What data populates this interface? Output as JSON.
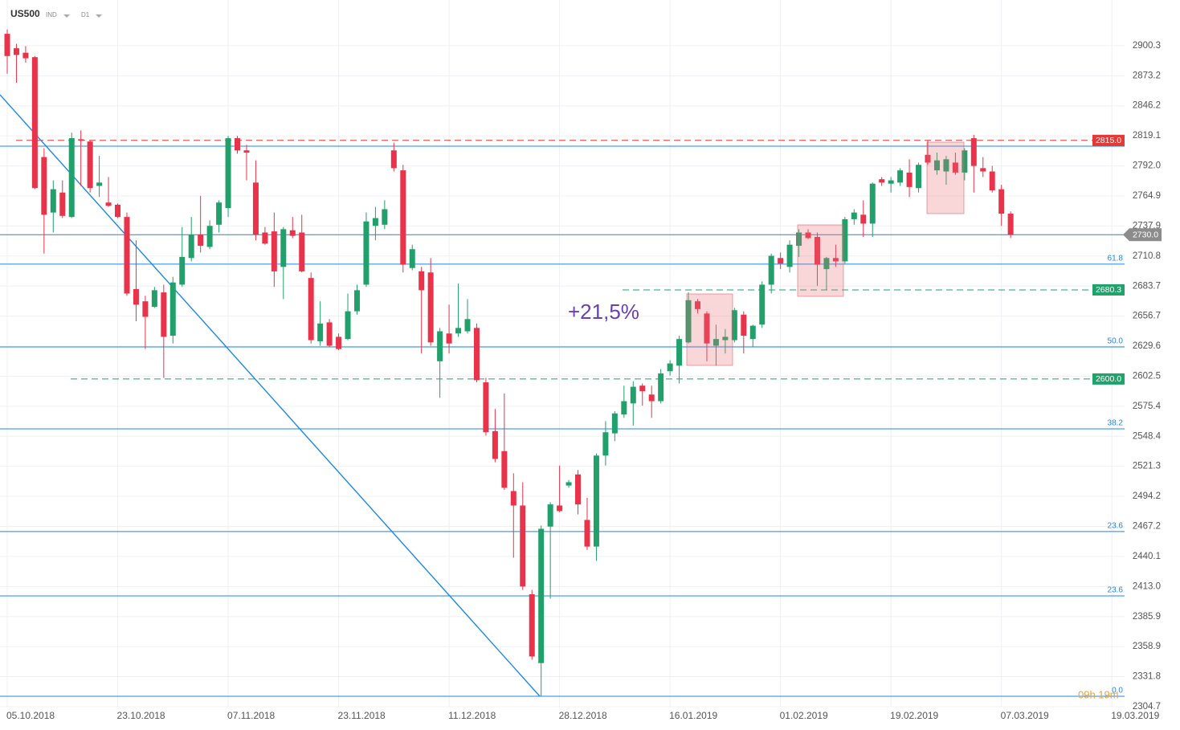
{
  "chart_data": {
    "type": "candlestick",
    "symbol": "US500",
    "instrument_type": "IND",
    "timeframe": "D1",
    "annotation": "+21,5%",
    "timer": "09h 19m",
    "up_color": "#22a06b",
    "down_color": "#e8334a",
    "categories": [
      "05.10.2018",
      null,
      null,
      null,
      null,
      null,
      null,
      null,
      null,
      null,
      null,
      null,
      "23.10.2018",
      null,
      null,
      null,
      null,
      null,
      null,
      null,
      null,
      null,
      null,
      null,
      "07.11.2018",
      null,
      null,
      null,
      null,
      null,
      null,
      null,
      null,
      null,
      null,
      null,
      "23.11.2018",
      null,
      null,
      null,
      null,
      null,
      null,
      null,
      null,
      null,
      null,
      null,
      "11.12.2018",
      null,
      null,
      null,
      null,
      null,
      null,
      null,
      null,
      null,
      null,
      null,
      "28.12.2018",
      null,
      null,
      null,
      null,
      null,
      null,
      null,
      null,
      null,
      null,
      null,
      "16.01.2019",
      null,
      null,
      null,
      null,
      null,
      null,
      null,
      null,
      null,
      null,
      null,
      "01.02.2019",
      null,
      null,
      null,
      null,
      null,
      null,
      null,
      null,
      null,
      null,
      null,
      "19.02.2019",
      null,
      null,
      null,
      null,
      null,
      null,
      null,
      null,
      null,
      null,
      null,
      "07.03.2019",
      null,
      null,
      null,
      null,
      null,
      null,
      null,
      null,
      null,
      null,
      null,
      "19.03.2019"
    ],
    "open": [
      2911,
      2898,
      2894,
      2890,
      2800,
      2750,
      2768,
      2746,
      2816,
      2814,
      2774,
      2759,
      2757,
      2746,
      2681,
      2670,
      2665,
      2678,
      2639,
      2685,
      2709,
      2730,
      2719,
      2739,
      2754,
      2817,
      2806,
      2777,
      2732,
      2733,
      2701,
      2734,
      2732,
      2691,
      2634,
      2651,
      2638,
      2636,
      2661,
      2685,
      2738,
      2739,
      2806,
      2788,
      2700,
      2697,
      2696,
      2616,
      2641,
      2641,
      2643,
      2646,
      2597,
      2553,
      2535,
      2499,
      2486,
      2406,
      2344,
      2467,
      2486,
      2504,
      2514,
      2473,
      2449,
      2531,
      2551,
      2568,
      2578,
      2594,
      2586,
      2580,
      2607,
      2612,
      2633,
      2670,
      2659,
      2630,
      2635,
      2635,
      2658,
      2636,
      2649,
      2685,
      2709,
      2701,
      2720,
      2732,
      2728,
      2699,
      2709,
      2706,
      2744,
      2748,
      2740,
      2780,
      2776,
      2777,
      2786,
      2772,
      2802,
      2788,
      2787,
      2795,
      2786,
      2817,
      2790,
      2787,
      2771,
      2749,
      null,
      null,
      null,
      null,
      null,
      null,
      null,
      null,
      null,
      null,
      null
    ],
    "high": [
      2915,
      2902,
      2900,
      2891,
      2808,
      2779,
      2779,
      2822,
      2824,
      2815,
      2801,
      2782,
      2758,
      2750,
      2725,
      2675,
      2683,
      2685,
      2692,
      2737,
      2746,
      2765,
      2743,
      2761,
      2819,
      2819,
      2811,
      2797,
      2737,
      2750,
      2737,
      2746,
      2748,
      2696,
      2670,
      2654,
      2641,
      2677,
      2685,
      2750,
      2755,
      2761,
      2813,
      2793,
      2721,
      2701,
      2709,
      2646,
      2667,
      2686,
      2672,
      2650,
      2601,
      2573,
      2587,
      2515,
      2507,
      2410,
      2468,
      2489,
      2522,
      2509,
      2518,
      2493,
      2533,
      2562,
      2571,
      2594,
      2598,
      2596,
      2594,
      2609,
      2617,
      2639,
      2678,
      2672,
      2661,
      2649,
      2645,
      2664,
      2661,
      2649,
      2688,
      2713,
      2714,
      2725,
      2735,
      2735,
      2732,
      2710,
      2721,
      2746,
      2753,
      2761,
      2777,
      2782,
      2782,
      2790,
      2798,
      2795,
      2815,
      2804,
      2801,
      2804,
      2808,
      2820,
      2800,
      2792,
      2775,
      2751,
      null,
      null,
      null,
      null,
      null,
      null,
      null,
      null,
      null,
      null,
      null
    ],
    "low": [
      2875,
      2867,
      2885,
      2771,
      2713,
      2732,
      2745,
      2745,
      2774,
      2768,
      2764,
      2755,
      2745,
      2675,
      2652,
      2627,
      2664,
      2601,
      2632,
      2683,
      2706,
      2714,
      2717,
      2732,
      2746,
      2803,
      2779,
      2725,
      2721,
      2683,
      2672,
      2727,
      2696,
      2632,
      2630,
      2629,
      2626,
      2635,
      2658,
      2683,
      2725,
      2735,
      2787,
      2696,
      2698,
      2623,
      2630,
      2583,
      2623,
      2638,
      2641,
      2597,
      2549,
      2525,
      2500,
      2439,
      2410,
      2347,
      2314,
      2402,
      2480,
      2502,
      2478,
      2446,
      2436,
      2522,
      2544,
      2565,
      2558,
      2576,
      2565,
      2578,
      2603,
      2596,
      2632,
      2659,
      2616,
      2612,
      2623,
      2633,
      2623,
      2629,
      2646,
      2677,
      2699,
      2696,
      2710,
      2726,
      2684,
      2680,
      2701,
      2704,
      2739,
      2728,
      2728,
      2774,
      2768,
      2774,
      2764,
      2768,
      2793,
      2784,
      2775,
      2784,
      2779,
      2768,
      2782,
      2768,
      2738,
      2727,
      null,
      null,
      null,
      null,
      null,
      null,
      null,
      null,
      null,
      null,
      null
    ],
    "close": [
      2891,
      2892,
      2889,
      2772,
      2748,
      2771,
      2747,
      2817,
      2815,
      2772,
      2777,
      2756,
      2746,
      2677,
      2667,
      2656,
      2680,
      2638,
      2687,
      2710,
      2730,
      2720,
      2738,
      2759,
      2817,
      2806,
      2804,
      2730,
      2722,
      2697,
      2735,
      2729,
      2697,
      2635,
      2650,
      2630,
      2627,
      2661,
      2680,
      2742,
      2745,
      2753,
      2790,
      2703,
      2717,
      2680,
      2633,
      2643,
      2632,
      2646,
      2654,
      2599,
      2552,
      2528,
      2502,
      2486,
      2413,
      2350,
      2465,
      2487,
      2481,
      2507,
      2487,
      2449,
      2531,
      2552,
      2569,
      2580,
      2593,
      2589,
      2580,
      2605,
      2614,
      2636,
      2671,
      2663,
      2632,
      2636,
      2638,
      2662,
      2639,
      2648,
      2685,
      2711,
      2704,
      2721,
      2732,
      2727,
      2703,
      2709,
      2706,
      2744,
      2750,
      2740,
      2776,
      2777,
      2779,
      2788,
      2773,
      2793,
      2795,
      2797,
      2798,
      2786,
      2806,
      2792,
      2787,
      2770,
      2749,
      2730,
      null,
      null,
      null,
      null,
      null,
      null,
      null,
      null,
      null,
      null,
      null
    ],
    "ylim": [
      2304.7,
      2941.5
    ],
    "yticks": [
      2304.7,
      2331.8,
      2358.9,
      2385.9,
      {
        "value": 2413.0,
        "label": "2413.0"
      },
      2440.1,
      2467.2,
      2494.2,
      2521.3,
      2548.4,
      2575.4,
      2602.5,
      2629.6,
      2656.7,
      2683.7,
      2710.8,
      2737.9,
      2764.9,
      {
        "value": 2792.0,
        "label": "2792.0"
      },
      2819.1,
      2846.2,
      2873.2,
      2900.3
    ],
    "grid": true,
    "fib_color": "#1e88e5",
    "fib_levels": [
      {
        "value": 2809.8
      },
      {
        "value": 2703.5,
        "label": "61.8"
      },
      {
        "value": 2628.9,
        "label": "50.0"
      },
      {
        "value": 2555.1,
        "label": "38.2"
      },
      {
        "value": 2462.5,
        "label": "23.6"
      },
      {
        "value": 2404.6,
        "label": "23.6"
      },
      {
        "value": 2314.1,
        "label": "0.0"
      }
    ],
    "price_tags": [
      {
        "value": 2815.0,
        "label": "2815.0",
        "color": "#e53935",
        "style": "dashed"
      },
      {
        "value": 2730.0,
        "label": "2730.0",
        "color": "#8c8c8c",
        "style": "current",
        "line_color": "#5d7590"
      },
      {
        "value": 2680.3,
        "label": "2680.3",
        "color": "#1fa36b",
        "style": "dashed"
      },
      {
        "value": 2600.0,
        "label": "2600.0",
        "color": "#1fa36b",
        "style": "dashed"
      }
    ]
  }
}
